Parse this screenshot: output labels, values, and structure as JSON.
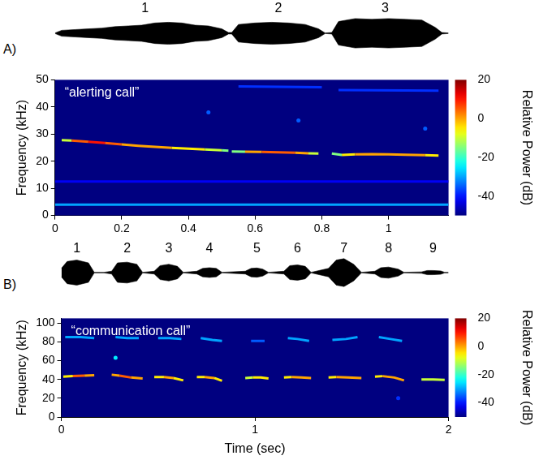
{
  "chart_data": [
    {
      "panel": "A)",
      "type": "line",
      "annotation": "“alerting call”",
      "y_label": "Frequency (kHz)",
      "xlim": [
        0,
        1.18
      ],
      "xticks": [
        0,
        0.2,
        0.4,
        0.6,
        0.8,
        1
      ],
      "ylim": [
        0,
        50
      ],
      "yticks": [
        0,
        10,
        20,
        30,
        40,
        50
      ],
      "grid": false,
      "series": [
        {
          "x": [
            0.02,
            0.05,
            0.1,
            0.15,
            0.2,
            0.25,
            0.3,
            0.35,
            0.4,
            0.45,
            0.5,
            0.52
          ],
          "values": [
            27.8,
            27.6,
            27.2,
            26.7,
            26.2,
            25.7,
            25.3,
            24.9,
            24.6,
            24.3,
            24.0,
            23.9
          ],
          "power": [
            -10,
            5,
            10,
            5,
            0,
            0,
            0,
            -5,
            -5,
            -10,
            -15,
            -25
          ]
        },
        {
          "x": [
            0.53,
            0.57,
            0.62,
            0.67,
            0.72,
            0.76,
            0.79
          ],
          "values": [
            23.6,
            23.5,
            23.4,
            23.3,
            23.1,
            22.9,
            22.8
          ],
          "power": [
            -15,
            0,
            5,
            5,
            0,
            -10,
            -20
          ]
        },
        {
          "x": [
            0.83,
            0.86,
            0.9,
            0.95,
            1.0,
            1.05,
            1.08,
            1.11,
            1.15
          ],
          "values": [
            22.8,
            22.3,
            22.5,
            22.6,
            22.5,
            22.4,
            22.3,
            22.2,
            22.1
          ],
          "power": [
            -15,
            -5,
            0,
            0,
            0,
            0,
            0,
            -5,
            -20
          ]
        },
        {
          "x": [
            0.46
          ],
          "values": [
            38
          ],
          "power": [
            -35
          ]
        },
        {
          "x": [
            0.73
          ],
          "values": [
            35
          ],
          "power": [
            -35
          ]
        },
        {
          "x": [
            1.11
          ],
          "values": [
            32
          ],
          "power": [
            -35
          ]
        },
        {
          "x": [
            0.55,
            0.8
          ],
          "values": [
            47.6,
            47.3
          ],
          "power": [
            -38,
            -38
          ]
        },
        {
          "x": [
            0.85,
            1.15
          ],
          "values": [
            46.2,
            46.0
          ],
          "power": [
            -38,
            -38
          ]
        },
        {
          "x": [
            0,
            1.18
          ],
          "values": [
            4,
            4
          ],
          "power": [
            -30,
            -30
          ]
        },
        {
          "x": [
            0,
            1.18
          ],
          "values": [
            12.5,
            12.5
          ],
          "power": [
            -42,
            -42
          ]
        }
      ],
      "colorbar": {
        "label": "Relative Power (dB)",
        "range": [
          -50,
          20
        ],
        "ticks": [
          -40,
          -20,
          0,
          20
        ]
      },
      "waveform": {
        "type": "area",
        "tick_labels": false,
        "ylim": [
          -1.05,
          1.05
        ],
        "x": [
          0,
          0.02,
          0.06,
          0.1,
          0.14,
          0.18,
          0.22,
          0.26,
          0.3,
          0.34,
          0.38,
          0.42,
          0.46,
          0.5,
          0.52,
          0.53,
          0.55,
          0.6,
          0.65,
          0.7,
          0.75,
          0.79,
          0.81,
          0.83,
          0.85,
          0.9,
          0.95,
          1.0,
          1.05,
          1.1,
          1.14,
          1.16,
          1.18
        ],
        "values": [
          0.02,
          0.2,
          0.25,
          0.3,
          0.35,
          0.45,
          0.5,
          0.55,
          0.7,
          0.75,
          0.7,
          0.55,
          0.5,
          0.3,
          0.05,
          0.05,
          0.6,
          0.7,
          0.75,
          0.7,
          0.6,
          0.3,
          0.02,
          0.05,
          0.8,
          1.0,
          0.95,
          1.0,
          0.95,
          0.9,
          0.4,
          0.05,
          0.02
        ],
        "labels": [
          {
            "x": 0.27,
            "label": "1"
          },
          {
            "x": 0.67,
            "label": "2"
          },
          {
            "x": 0.99,
            "label": "3"
          }
        ]
      }
    },
    {
      "panel": "B)",
      "type": "line",
      "annotation": "“communication call”",
      "x_label": "Time (sec)",
      "y_label": "Frequency (kHz)",
      "xlim": [
        0,
        2
      ],
      "xticks": [
        0,
        1,
        2
      ],
      "ylim": [
        0,
        105
      ],
      "yticks": [
        0,
        20,
        40,
        60,
        80,
        100
      ],
      "grid": false,
      "series": [
        {
          "x": [
            0.01,
            0.06,
            0.12,
            0.17
          ],
          "values": [
            43,
            43.5,
            44,
            44.5
          ],
          "power": [
            -5,
            5,
            0,
            -10
          ]
        },
        {
          "x": [
            0.26,
            0.3,
            0.36,
            0.42
          ],
          "values": [
            45,
            44,
            42,
            41
          ],
          "power": [
            0,
            5,
            0,
            -15
          ]
        },
        {
          "x": [
            0.48,
            0.53,
            0.58,
            0.63
          ],
          "values": [
            42.5,
            42.5,
            41.5,
            39
          ],
          "power": [
            -5,
            0,
            -5,
            -20
          ]
        },
        {
          "x": [
            0.7,
            0.74,
            0.79,
            0.83
          ],
          "values": [
            42.5,
            42.5,
            41.5,
            38.5
          ],
          "power": [
            -5,
            0,
            -5,
            -25
          ]
        },
        {
          "x": [
            0.95,
            0.99,
            1.03,
            1.07
          ],
          "values": [
            41.5,
            42,
            42,
            41
          ],
          "power": [
            -10,
            -5,
            -5,
            -15
          ]
        },
        {
          "x": [
            1.15,
            1.19,
            1.24,
            1.29
          ],
          "values": [
            42,
            42.5,
            42,
            41.5
          ],
          "power": [
            -5,
            0,
            0,
            -10
          ]
        },
        {
          "x": [
            1.38,
            1.42,
            1.48,
            1.55
          ],
          "values": [
            42,
            42.5,
            42,
            41.5
          ],
          "power": [
            -5,
            0,
            0,
            -10
          ]
        },
        {
          "x": [
            1.62,
            1.66,
            1.72,
            1.77
          ],
          "values": [
            43,
            43.5,
            42,
            39
          ],
          "power": [
            -5,
            0,
            0,
            -20
          ]
        },
        {
          "x": [
            1.86,
            1.92,
            1.98
          ],
          "values": [
            40,
            40,
            39.5
          ],
          "power": [
            -10,
            -10,
            -15
          ]
        },
        {
          "x": [
            0.02,
            0.1,
            0.17
          ],
          "values": [
            85,
            85,
            84
          ],
          "power": [
            -30,
            -30,
            -35
          ]
        },
        {
          "x": [
            0.28,
            0.34,
            0.4
          ],
          "values": [
            85,
            84,
            84
          ],
          "power": [
            -30,
            -30,
            -35
          ]
        },
        {
          "x": [
            0.5,
            0.56,
            0.62
          ],
          "values": [
            84,
            84,
            83
          ],
          "power": [
            -30,
            -30,
            -35
          ]
        },
        {
          "x": [
            0.72,
            0.78,
            0.83
          ],
          "values": [
            84,
            82,
            81
          ],
          "power": [
            -30,
            -30,
            -35
          ]
        },
        {
          "x": [
            0.98,
            1.05
          ],
          "values": [
            81,
            81
          ],
          "power": [
            -35,
            -35
          ]
        },
        {
          "x": [
            1.17,
            1.22,
            1.28
          ],
          "values": [
            84,
            83,
            81
          ],
          "power": [
            -30,
            -30,
            -35
          ]
        },
        {
          "x": [
            1.4,
            1.47,
            1.53
          ],
          "values": [
            82,
            83,
            85
          ],
          "power": [
            -30,
            -30,
            -35
          ]
        },
        {
          "x": [
            1.64,
            1.7,
            1.76
          ],
          "values": [
            85,
            83,
            81
          ],
          "power": [
            -30,
            -30,
            -35
          ]
        },
        {
          "x": [
            0.28
          ],
          "values": [
            63
          ],
          "power": [
            -25
          ]
        },
        {
          "x": [
            1.74
          ],
          "values": [
            20
          ],
          "power": [
            -38
          ]
        }
      ],
      "colorbar": {
        "label": "Relative Power (dB)",
        "range": [
          -50,
          20
        ],
        "ticks": [
          -40,
          -20,
          0,
          20
        ]
      },
      "waveform": {
        "type": "area",
        "tick_labels": false,
        "ylim": [
          -1.05,
          1.05
        ],
        "x": [
          0,
          0.03,
          0.08,
          0.14,
          0.17,
          0.22,
          0.26,
          0.29,
          0.34,
          0.39,
          0.42,
          0.48,
          0.51,
          0.555,
          0.6,
          0.63,
          0.7,
          0.73,
          0.765,
          0.8,
          0.83,
          0.95,
          0.98,
          1.01,
          1.04,
          1.07,
          1.15,
          1.18,
          1.22,
          1.26,
          1.29,
          1.38,
          1.42,
          1.46,
          1.51,
          1.55,
          1.62,
          1.65,
          1.69,
          1.74,
          1.77,
          1.86,
          1.89,
          1.92,
          1.96,
          1.98,
          2.0
        ],
        "values": [
          0.3,
          0.8,
          0.9,
          0.7,
          0.02,
          0.02,
          0.1,
          0.7,
          0.75,
          0.6,
          0.02,
          0.1,
          0.5,
          0.6,
          0.45,
          0.02,
          0.1,
          0.3,
          0.35,
          0.3,
          0.02,
          0.1,
          0.3,
          0.33,
          0.25,
          0.02,
          0.1,
          0.5,
          0.55,
          0.45,
          0.02,
          0.3,
          0.9,
          1.0,
          0.6,
          0.02,
          0.1,
          0.35,
          0.4,
          0.25,
          0.02,
          0.05,
          0.15,
          0.15,
          0.12,
          0.02,
          0.02
        ],
        "labels": [
          {
            "x": 0.08,
            "label": "1"
          },
          {
            "x": 0.34,
            "label": "2"
          },
          {
            "x": 0.555,
            "label": "3"
          },
          {
            "x": 0.765,
            "label": "4"
          },
          {
            "x": 1.01,
            "label": "5"
          },
          {
            "x": 1.22,
            "label": "6"
          },
          {
            "x": 1.46,
            "label": "7"
          },
          {
            "x": 1.69,
            "label": "8"
          },
          {
            "x": 1.92,
            "label": "9"
          }
        ]
      }
    }
  ]
}
